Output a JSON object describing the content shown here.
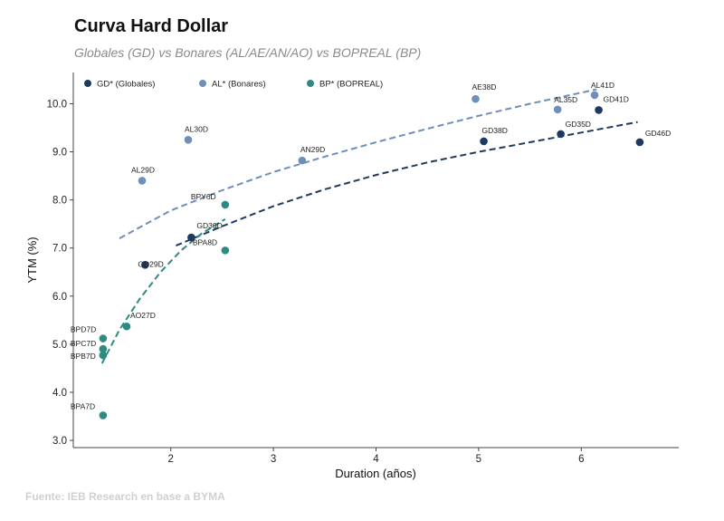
{
  "header": {
    "title": "Curva Hard Dollar",
    "subtitle": "Globales (GD) vs Bonares (AL/AE/AN/AO) vs BOPREAL (BP)"
  },
  "source": "Fuente: IEB Research en base a BYMA",
  "chart_data": {
    "type": "scatter",
    "xlabel": "Duration (años)",
    "ylabel": "YTM (%)",
    "xlim": [
      1.05,
      6.95
    ],
    "ylim": [
      2.85,
      10.65
    ],
    "xticks": [
      "2",
      "3",
      "4",
      "5",
      "6"
    ],
    "yticks": [
      "3.0",
      "4.0",
      "5.0",
      "6.0",
      "7.0",
      "8.0",
      "9.0",
      "10.0"
    ],
    "grid": false,
    "legend_position": "top-left",
    "series": [
      {
        "name": "GD* (Globales)",
        "color": "#1f3a5f",
        "points": [
          {
            "label": "GD29D",
            "x": 1.75,
            "y": 6.65
          },
          {
            "label": "GD30D",
            "x": 2.2,
            "y": 7.22
          },
          {
            "label": "GD38D",
            "x": 5.05,
            "y": 9.22
          },
          {
            "label": "GD35D",
            "x": 5.8,
            "y": 9.37
          },
          {
            "label": "GD41D",
            "x": 6.17,
            "y": 9.87
          },
          {
            "label": "GD46D",
            "x": 6.57,
            "y": 9.2
          }
        ],
        "trend": [
          [
            2.05,
            7.05
          ],
          [
            2.5,
            7.45
          ],
          [
            3.0,
            7.87
          ],
          [
            3.5,
            8.22
          ],
          [
            4.0,
            8.52
          ],
          [
            4.5,
            8.78
          ],
          [
            5.0,
            9.0
          ],
          [
            5.5,
            9.2
          ],
          [
            6.0,
            9.4
          ],
          [
            6.55,
            9.62
          ]
        ]
      },
      {
        "name": "AL* (Bonares)",
        "color": "#6d8fba",
        "points": [
          {
            "label": "AL29D",
            "x": 1.72,
            "y": 8.4
          },
          {
            "label": "AL30D",
            "x": 2.17,
            "y": 9.25
          },
          {
            "label": "AN29D",
            "x": 3.28,
            "y": 8.82
          },
          {
            "label": "AE38D",
            "x": 4.97,
            "y": 10.1
          },
          {
            "label": "AL35D",
            "x": 5.77,
            "y": 9.88
          },
          {
            "label": "AL41D",
            "x": 6.13,
            "y": 10.18
          }
        ],
        "trend": [
          [
            1.5,
            7.2
          ],
          [
            2.0,
            7.78
          ],
          [
            2.5,
            8.2
          ],
          [
            3.0,
            8.58
          ],
          [
            3.5,
            8.9
          ],
          [
            4.0,
            9.2
          ],
          [
            4.5,
            9.48
          ],
          [
            5.0,
            9.75
          ],
          [
            5.5,
            10.0
          ],
          [
            6.15,
            10.3
          ]
        ]
      },
      {
        "name": "BP* (BOPREAL)",
        "color": "#2e8b81",
        "points": [
          {
            "label": "AO27D",
            "x": 1.57,
            "y": 5.37
          },
          {
            "label": "BPD7D",
            "x": 1.34,
            "y": 5.12
          },
          {
            "label": "BPC7D",
            "x": 1.34,
            "y": 4.9
          },
          {
            "label": "BPB7D",
            "x": 1.34,
            "y": 4.77
          },
          {
            "label": "BPA7D",
            "x": 1.34,
            "y": 3.52
          },
          {
            "label": "BPY6D",
            "x": 2.53,
            "y": 7.9
          },
          {
            "label": "BPA8D",
            "x": 2.53,
            "y": 6.95
          }
        ],
        "trend": [
          [
            1.33,
            4.6
          ],
          [
            1.5,
            5.3
          ],
          [
            1.7,
            5.95
          ],
          [
            1.9,
            6.5
          ],
          [
            2.1,
            6.95
          ],
          [
            2.3,
            7.3
          ],
          [
            2.53,
            7.6
          ]
        ]
      }
    ]
  }
}
